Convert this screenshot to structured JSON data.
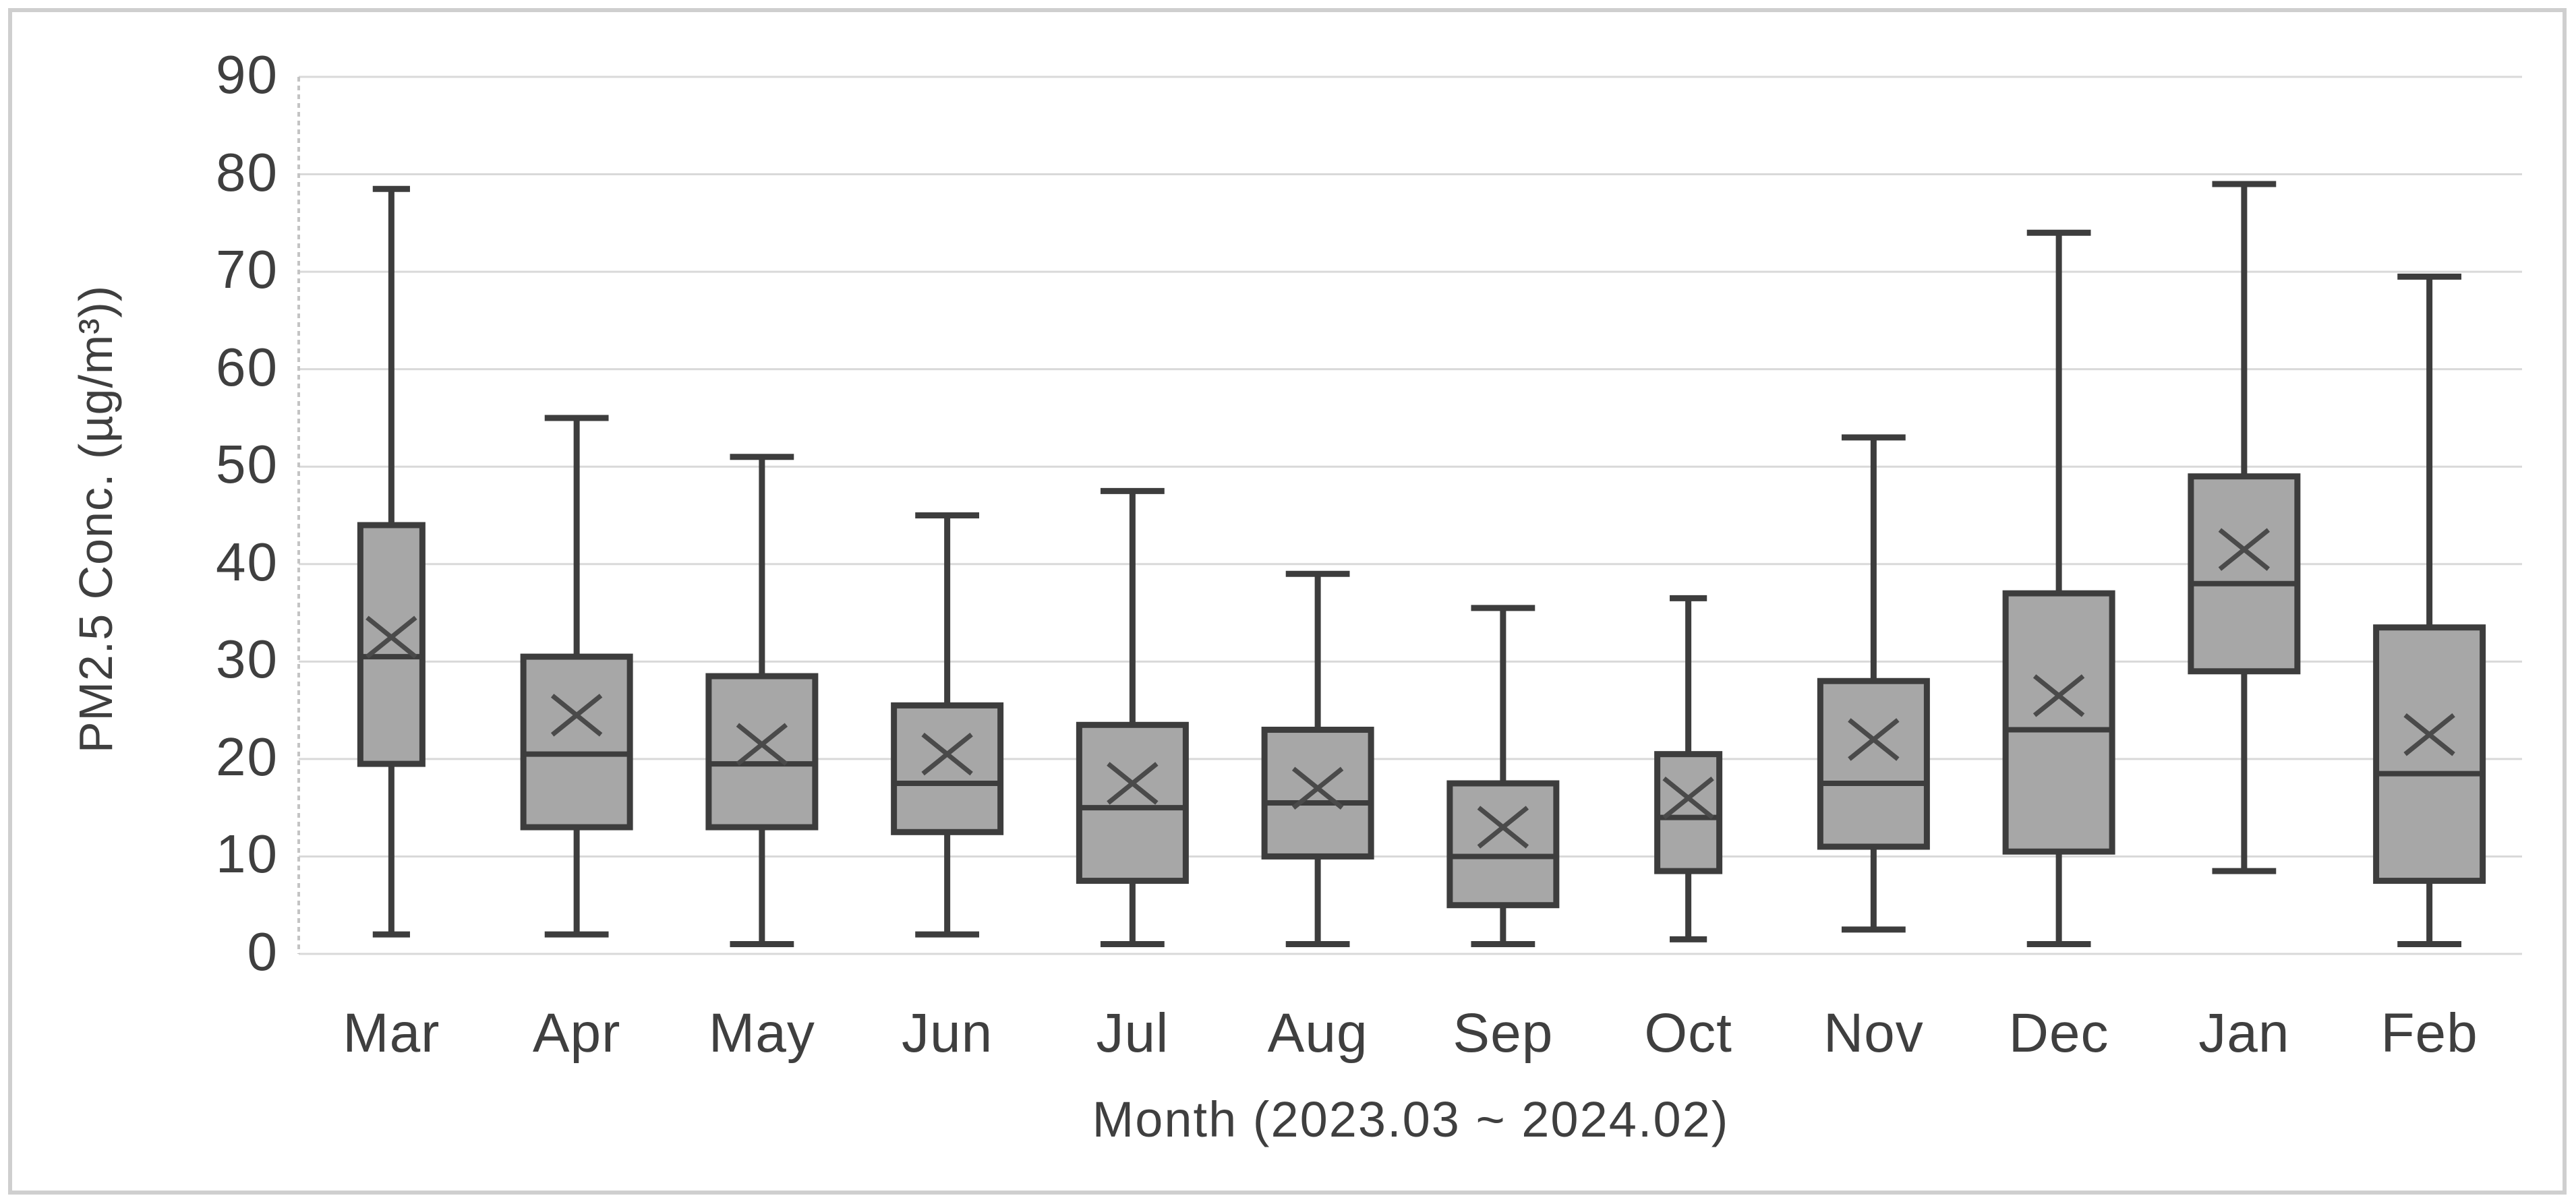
{
  "colors": {
    "background": "#ffffff",
    "page_border": "#cfcfcf",
    "gridline": "#d9d9d9",
    "axis_line": "#c4c4c4",
    "box_fill": "#a7a7a7",
    "box_border": "#3d3d3d",
    "median_line": "#3d3d3d",
    "whisker": "#3d3d3d",
    "mean_marker": "#4a4a4a",
    "axis_text": "#3f3f3f"
  },
  "chart_data": {
    "type": "box",
    "title": "",
    "xlabel": "Month (2023.03 ~ 2024.02)",
    "ylabel": "PM2.5 Conc. (µg/m³))",
    "ylim": [
      0,
      90
    ],
    "yticks": [
      0,
      10,
      20,
      30,
      40,
      50,
      60,
      70,
      80,
      90
    ],
    "grid": "horizontal",
    "legend": "none",
    "mean_marker": "x",
    "categories": [
      "Mar",
      "Apr",
      "May",
      "Jun",
      "Jul",
      "Aug",
      "Sep",
      "Oct",
      "Nov",
      "Dec",
      "Jan",
      "Feb"
    ],
    "boxes": [
      {
        "month": "Mar",
        "min": 2,
        "q1": 19.5,
        "median": 30.5,
        "mean": 32.5,
        "q3": 44,
        "max": 78.5,
        "narrow": true
      },
      {
        "month": "Apr",
        "min": 2,
        "q1": 13,
        "median": 20.5,
        "mean": 24.5,
        "q3": 30.5,
        "max": 55,
        "narrow": false
      },
      {
        "month": "May",
        "min": 1,
        "q1": 13,
        "median": 19.5,
        "mean": 21.5,
        "q3": 28.5,
        "max": 51,
        "narrow": false
      },
      {
        "month": "Jun",
        "min": 2,
        "q1": 12.5,
        "median": 17.5,
        "mean": 20.5,
        "q3": 25.5,
        "max": 45,
        "narrow": false
      },
      {
        "month": "Jul",
        "min": 1,
        "q1": 7.5,
        "median": 15,
        "mean": 17.5,
        "q3": 23.5,
        "max": 47.5,
        "narrow": false
      },
      {
        "month": "Aug",
        "min": 1,
        "q1": 10,
        "median": 15.5,
        "mean": 17,
        "q3": 23,
        "max": 39,
        "narrow": false
      },
      {
        "month": "Sep",
        "min": 1,
        "q1": 5,
        "median": 10,
        "mean": 13,
        "q3": 17.5,
        "max": 35.5,
        "narrow": false
      },
      {
        "month": "Oct",
        "min": 1.5,
        "q1": 8.5,
        "median": 14,
        "mean": 16,
        "q3": 20.5,
        "max": 36.5,
        "narrow": true
      },
      {
        "month": "Nov",
        "min": 2.5,
        "q1": 11,
        "median": 17.5,
        "mean": 22,
        "q3": 28,
        "max": 53,
        "narrow": false
      },
      {
        "month": "Dec",
        "min": 1,
        "q1": 10.5,
        "median": 23,
        "mean": 26.5,
        "q3": 37,
        "max": 74,
        "narrow": false
      },
      {
        "month": "Jan",
        "min": 8.5,
        "q1": 29,
        "median": 38,
        "mean": 41.5,
        "q3": 49,
        "max": 79,
        "narrow": false
      },
      {
        "month": "Feb",
        "min": 1,
        "q1": 7.5,
        "median": 18.5,
        "mean": 22.5,
        "q3": 33.5,
        "max": 69.5,
        "narrow": false
      }
    ]
  }
}
